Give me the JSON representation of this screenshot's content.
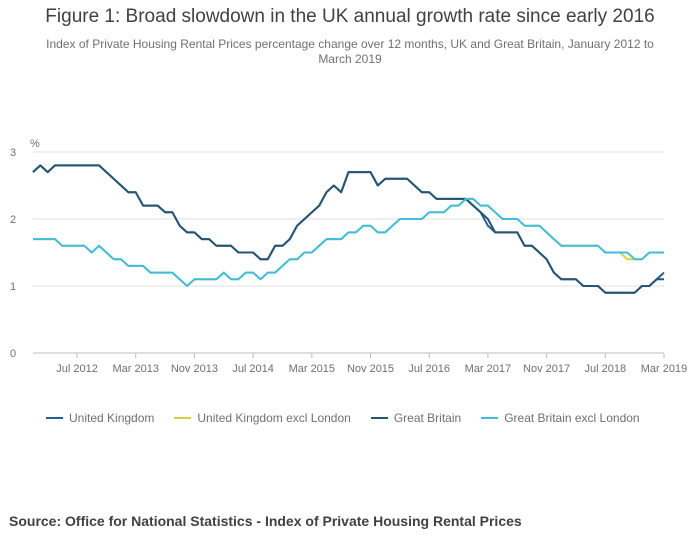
{
  "title": "Figure 1: Broad slowdown in the UK annual growth rate since early 2016",
  "subtitle": "Index of Private Housing Rental Prices percentage change over 12 months, UK and Great Britain, January 2012 to March 2019",
  "source": "Source: Office for National Statistics - Index of Private Housing Rental Prices",
  "chart_data": {
    "type": "line",
    "x_start": "2012-01",
    "x_end": "2019-03",
    "x_ticks": [
      "Jul 2012",
      "Mar 2013",
      "Nov 2013",
      "Jul 2014",
      "Mar 2015",
      "Nov 2015",
      "Jul 2016",
      "Mar 2017",
      "Nov 2017",
      "Jul 2018",
      "Mar 2019"
    ],
    "x_tick_months": [
      6,
      14,
      22,
      30,
      38,
      46,
      54,
      62,
      70,
      78,
      86
    ],
    "ylabel": "%",
    "y_ticks": [
      "0",
      "1",
      "2",
      "3"
    ],
    "ylim": [
      0,
      3
    ],
    "grid": true,
    "legend_position": "bottom",
    "series": [
      {
        "name": "United Kingdom",
        "color": "#206095",
        "values": [
          2.7,
          2.8,
          2.7,
          2.8,
          2.8,
          2.8,
          2.8,
          2.8,
          2.8,
          2.8,
          2.7,
          2.6,
          2.5,
          2.4,
          2.4,
          2.2,
          2.2,
          2.2,
          2.1,
          2.1,
          1.9,
          1.8,
          1.8,
          1.7,
          1.7,
          1.6,
          1.6,
          1.6,
          1.5,
          1.5,
          1.5,
          1.4,
          1.4,
          1.6,
          1.6,
          1.7,
          1.9,
          2.0,
          2.1,
          2.2,
          2.4,
          2.5,
          2.4,
          2.7,
          2.7,
          2.7,
          2.7,
          2.5,
          2.6,
          2.6,
          2.6,
          2.6,
          2.5,
          2.4,
          2.4,
          2.3,
          2.3,
          2.3,
          2.3,
          2.3,
          2.2,
          2.1,
          1.9,
          1.8,
          1.8,
          1.8,
          1.8,
          1.6,
          1.6,
          1.5,
          1.4,
          1.2,
          1.1,
          1.1,
          1.1,
          1.0,
          1.0,
          1.0,
          0.9,
          0.9,
          0.9,
          0.9,
          0.9,
          1.0,
          1.0,
          1.1,
          1.2
        ]
      },
      {
        "name": "United Kingdom excl London",
        "color": "#d8d13b",
        "values": [
          1.7,
          1.7,
          1.7,
          1.7,
          1.6,
          1.6,
          1.6,
          1.6,
          1.5,
          1.6,
          1.5,
          1.4,
          1.4,
          1.3,
          1.3,
          1.3,
          1.2,
          1.2,
          1.2,
          1.2,
          1.1,
          1.0,
          1.1,
          1.1,
          1.1,
          1.1,
          1.2,
          1.1,
          1.1,
          1.2,
          1.2,
          1.1,
          1.2,
          1.2,
          1.3,
          1.4,
          1.4,
          1.5,
          1.5,
          1.6,
          1.7,
          1.7,
          1.7,
          1.8,
          1.8,
          1.9,
          1.9,
          1.8,
          1.8,
          1.9,
          2.0,
          2.0,
          2.0,
          2.0,
          2.1,
          2.1,
          2.1,
          2.2,
          2.2,
          2.3,
          2.3,
          2.2,
          2.2,
          2.1,
          2.0,
          2.0,
          2.0,
          1.9,
          1.9,
          1.9,
          1.8,
          1.7,
          1.6,
          1.6,
          1.6,
          1.6,
          1.6,
          1.6,
          1.5,
          1.5,
          1.5,
          1.4,
          1.4,
          1.4,
          1.5,
          1.5,
          1.5
        ]
      },
      {
        "name": "Great Britain",
        "color": "#27556f",
        "values": [
          2.7,
          2.8,
          2.7,
          2.8,
          2.8,
          2.8,
          2.8,
          2.8,
          2.8,
          2.8,
          2.7,
          2.6,
          2.5,
          2.4,
          2.4,
          2.2,
          2.2,
          2.2,
          2.1,
          2.1,
          1.9,
          1.8,
          1.8,
          1.7,
          1.7,
          1.6,
          1.6,
          1.6,
          1.5,
          1.5,
          1.5,
          1.4,
          1.4,
          1.6,
          1.6,
          1.7,
          1.9,
          2.0,
          2.1,
          2.2,
          2.4,
          2.5,
          2.4,
          2.7,
          2.7,
          2.7,
          2.7,
          2.5,
          2.6,
          2.6,
          2.6,
          2.6,
          2.5,
          2.4,
          2.4,
          2.3,
          2.3,
          2.3,
          2.3,
          2.3,
          2.2,
          2.1,
          2.0,
          1.8,
          1.8,
          1.8,
          1.8,
          1.6,
          1.6,
          1.5,
          1.4,
          1.2,
          1.1,
          1.1,
          1.1,
          1.0,
          1.0,
          1.0,
          0.9,
          0.9,
          0.9,
          0.9,
          0.9,
          1.0,
          1.0,
          1.1,
          1.1
        ]
      },
      {
        "name": "Great Britain excl London",
        "color": "#3fbde0",
        "values": [
          1.7,
          1.7,
          1.7,
          1.7,
          1.6,
          1.6,
          1.6,
          1.6,
          1.5,
          1.6,
          1.5,
          1.4,
          1.4,
          1.3,
          1.3,
          1.3,
          1.2,
          1.2,
          1.2,
          1.2,
          1.1,
          1.0,
          1.1,
          1.1,
          1.1,
          1.1,
          1.2,
          1.1,
          1.1,
          1.2,
          1.2,
          1.1,
          1.2,
          1.2,
          1.3,
          1.4,
          1.4,
          1.5,
          1.5,
          1.6,
          1.7,
          1.7,
          1.7,
          1.8,
          1.8,
          1.9,
          1.9,
          1.8,
          1.8,
          1.9,
          2.0,
          2.0,
          2.0,
          2.0,
          2.1,
          2.1,
          2.1,
          2.2,
          2.2,
          2.3,
          2.3,
          2.2,
          2.2,
          2.1,
          2.0,
          2.0,
          2.0,
          1.9,
          1.9,
          1.9,
          1.8,
          1.7,
          1.6,
          1.6,
          1.6,
          1.6,
          1.6,
          1.6,
          1.5,
          1.5,
          1.5,
          1.5,
          1.4,
          1.4,
          1.5,
          1.5,
          1.5
        ]
      }
    ]
  }
}
